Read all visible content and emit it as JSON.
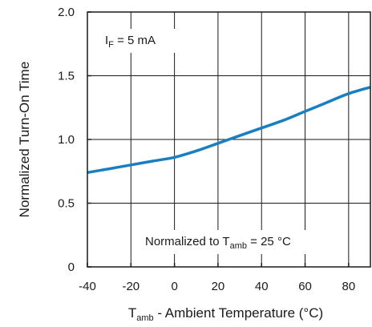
{
  "chart_data": {
    "type": "line",
    "title": "",
    "xlabel": {
      "main": "T",
      "sub": "amb",
      "rest": " - Ambient Temperature (°C)"
    },
    "ylabel": "Normalized Turn-On Time",
    "xlim": [
      -40,
      90
    ],
    "ylim": [
      0,
      2.0
    ],
    "x_ticks": [
      -40,
      -20,
      0,
      20,
      40,
      60,
      80
    ],
    "x_tick_labels": [
      "-40",
      "-20",
      "0",
      "20",
      "40",
      "60",
      "80"
    ],
    "y_ticks": [
      0,
      0.5,
      1.0,
      1.5,
      2.0
    ],
    "y_tick_labels": [
      "0",
      "0.5",
      "1.0",
      "1.5",
      "2.0"
    ],
    "grid": true,
    "annotations": {
      "condition": {
        "main": "I",
        "sub": "F",
        "rest": " = 5 mA"
      },
      "normalization": {
        "pre": "Normalized to T",
        "sub": "amb",
        "rest": " = 25 °C"
      }
    },
    "series": [
      {
        "color": "#1a7fc1",
        "x": [
          -40,
          -30,
          -20,
          -10,
          0,
          10,
          20,
          30,
          40,
          50,
          60,
          70,
          80,
          90
        ],
        "y": [
          0.74,
          0.77,
          0.8,
          0.83,
          0.86,
          0.91,
          0.97,
          1.03,
          1.09,
          1.15,
          1.22,
          1.29,
          1.36,
          1.41
        ]
      }
    ]
  }
}
